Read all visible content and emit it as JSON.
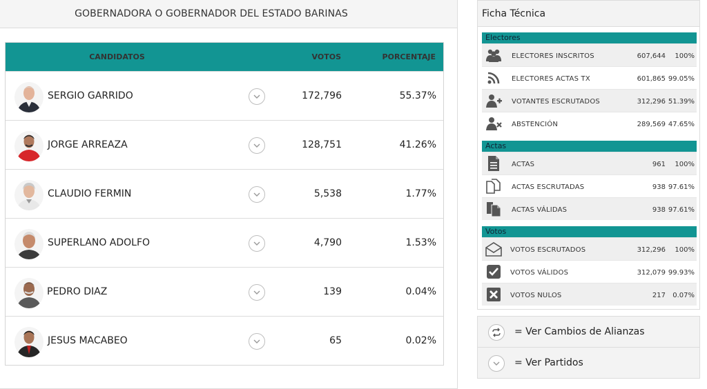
{
  "header": {
    "title": "GOBERNADORA O GOBERNADOR DEL ESTADO BARINAS"
  },
  "table": {
    "columns": {
      "candidatos": "CANDIDATOS",
      "votos": "VOTOS",
      "porcentaje": "PORCENTAJE"
    },
    "rows": [
      {
        "name": "SERGIO GARRIDO",
        "votes": "172,796",
        "pct": "55.37%"
      },
      {
        "name": "JORGE ARREAZA",
        "votes": "128,751",
        "pct": "41.26%"
      },
      {
        "name": "CLAUDIO FERMIN",
        "votes": "5,538",
        "pct": "1.77%"
      },
      {
        "name": "SUPERLANO ADOLFO",
        "votes": "4,790",
        "pct": "1.53%"
      },
      {
        "name": "PEDRO DIAZ",
        "votes": "139",
        "pct": "0.04%"
      },
      {
        "name": "JESUS MACABEO",
        "votes": "65",
        "pct": "0.02%"
      }
    ]
  },
  "ficha": {
    "title": "Ficha Técnica",
    "sections": [
      {
        "title": "Electores",
        "rows": [
          {
            "icon": "users-group-icon",
            "label": "ELECTORES INSCRITOS",
            "value": "607,644",
            "pct": "100%"
          },
          {
            "icon": "rss-icon",
            "label": "ELECTORES ACTAS TX",
            "value": "601,865",
            "pct": "99.05%"
          },
          {
            "icon": "user-plus-icon",
            "label": "VOTANTES ESCRUTADOS",
            "value": "312,296",
            "pct": "51.39%"
          },
          {
            "icon": "user-x-icon",
            "label": "ABSTENCIÓN",
            "value": "289,569",
            "pct": "47.65%"
          }
        ]
      },
      {
        "title": "Actas",
        "rows": [
          {
            "icon": "document-icon",
            "label": "ACTAS",
            "value": "961",
            "pct": "100%"
          },
          {
            "icon": "copy-icon",
            "label": "ACTAS ESCRUTADAS",
            "value": "938",
            "pct": "97.61%"
          },
          {
            "icon": "files-icon",
            "label": "ACTAS VÁLIDAS",
            "value": "938",
            "pct": "97.61%"
          }
        ]
      },
      {
        "title": "Votos",
        "rows": [
          {
            "icon": "envelope-open-icon",
            "label": "VOTOS ESCRUTADOS",
            "value": "312,296",
            "pct": "100%"
          },
          {
            "icon": "checkbox-checked-icon",
            "label": "VOTOS VÁLIDOS",
            "value": "312,079",
            "pct": "99.93%"
          },
          {
            "icon": "checkbox-x-icon",
            "label": "VOTOS NULOS",
            "value": "217",
            "pct": "0.07%"
          }
        ]
      }
    ]
  },
  "actions": {
    "alianzas": "= Ver Cambios de Alianzas",
    "partidos": "= Ver Partidos"
  },
  "colors": {
    "accent": "#129593",
    "header_bg": "#f5f5f5"
  }
}
